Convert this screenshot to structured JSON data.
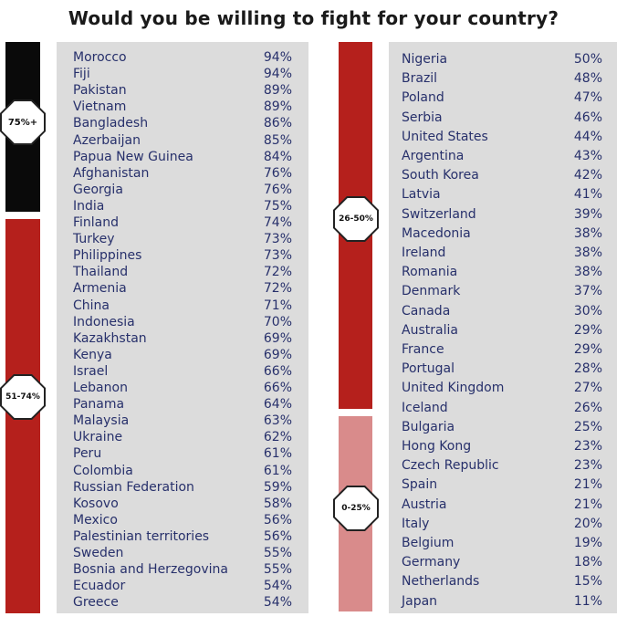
{
  "title": "Would you be willing to fight for your country?",
  "colors": {
    "bracket_75_plus": "#0a0a0a",
    "bracket_51_74": "#b5201c",
    "bracket_26_50": "#b5201c",
    "bracket_0_25": "#d98b8b",
    "panel": "#dcdcdc",
    "text": "#27306b"
  },
  "chart_data": {
    "type": "table",
    "title": "Would you be willing to fight for your country?",
    "brackets": [
      {
        "label": "75%+",
        "range": [
          75,
          100
        ]
      },
      {
        "label": "51-74%",
        "range": [
          51,
          74
        ]
      },
      {
        "label": "26-50%",
        "range": [
          26,
          50
        ]
      },
      {
        "label": "0-25%",
        "range": [
          0,
          25
        ]
      }
    ],
    "left_column": [
      {
        "country": "Morocco",
        "value": "94%"
      },
      {
        "country": "Fiji",
        "value": "94%"
      },
      {
        "country": "Pakistan",
        "value": "89%"
      },
      {
        "country": "Vietnam",
        "value": "89%"
      },
      {
        "country": "Bangladesh",
        "value": "86%"
      },
      {
        "country": "Azerbaijan",
        "value": "85%"
      },
      {
        "country": "Papua New Guinea",
        "value": "84%"
      },
      {
        "country": "Afghanistan",
        "value": "76%"
      },
      {
        "country": "Georgia",
        "value": "76%"
      },
      {
        "country": "India",
        "value": "75%"
      },
      {
        "country": "Finland",
        "value": "74%"
      },
      {
        "country": "Turkey",
        "value": "73%"
      },
      {
        "country": "Philippines",
        "value": "73%"
      },
      {
        "country": "Thailand",
        "value": "72%"
      },
      {
        "country": "Armenia",
        "value": "72%"
      },
      {
        "country": "China",
        "value": "71%"
      },
      {
        "country": "Indonesia",
        "value": "70%"
      },
      {
        "country": "Kazakhstan",
        "value": "69%"
      },
      {
        "country": "Kenya",
        "value": "69%"
      },
      {
        "country": "Israel",
        "value": "66%"
      },
      {
        "country": "Lebanon",
        "value": "66%"
      },
      {
        "country": "Panama",
        "value": "64%"
      },
      {
        "country": "Malaysia",
        "value": "63%"
      },
      {
        "country": "Ukraine",
        "value": "62%"
      },
      {
        "country": "Peru",
        "value": "61%"
      },
      {
        "country": "Colombia",
        "value": "61%"
      },
      {
        "country": "Russian Federation",
        "value": "59%"
      },
      {
        "country": "Kosovo",
        "value": "58%"
      },
      {
        "country": "Mexico",
        "value": "56%"
      },
      {
        "country": "Palestinian territories",
        "value": "56%"
      },
      {
        "country": "Sweden",
        "value": "55%"
      },
      {
        "country": "Bosnia and Herzegovina",
        "value": "55%"
      },
      {
        "country": "Ecuador",
        "value": "54%"
      },
      {
        "country": "Greece",
        "value": "54%"
      }
    ],
    "right_column": [
      {
        "country": "Nigeria",
        "value": "50%"
      },
      {
        "country": "Brazil",
        "value": "48%"
      },
      {
        "country": "Poland",
        "value": "47%"
      },
      {
        "country": "Serbia",
        "value": "46%"
      },
      {
        "country": "United States",
        "value": "44%"
      },
      {
        "country": "Argentina",
        "value": "43%"
      },
      {
        "country": "South Korea",
        "value": "42%"
      },
      {
        "country": "Latvia",
        "value": "41%"
      },
      {
        "country": "Switzerland",
        "value": "39%"
      },
      {
        "country": "Macedonia",
        "value": "38%"
      },
      {
        "country": "Ireland",
        "value": "38%"
      },
      {
        "country": "Romania",
        "value": "38%"
      },
      {
        "country": "Denmark",
        "value": "37%"
      },
      {
        "country": "Canada",
        "value": "30%"
      },
      {
        "country": "Australia",
        "value": "29%"
      },
      {
        "country": "France",
        "value": "29%"
      },
      {
        "country": "Portugal",
        "value": "28%"
      },
      {
        "country": "United Kingdom",
        "value": "27%"
      },
      {
        "country": "Iceland",
        "value": "26%"
      },
      {
        "country": "Bulgaria",
        "value": "25%"
      },
      {
        "country": "Hong Kong",
        "value": "23%"
      },
      {
        "country": "Czech Republic",
        "value": "23%"
      },
      {
        "country": "Spain",
        "value": "21%"
      },
      {
        "country": "Austria",
        "value": "21%"
      },
      {
        "country": "Italy",
        "value": "20%"
      },
      {
        "country": "Belgium",
        "value": "19%"
      },
      {
        "country": "Germany",
        "value": "18%"
      },
      {
        "country": "Netherlands",
        "value": "15%"
      },
      {
        "country": "Japan",
        "value": "11%"
      }
    ]
  }
}
